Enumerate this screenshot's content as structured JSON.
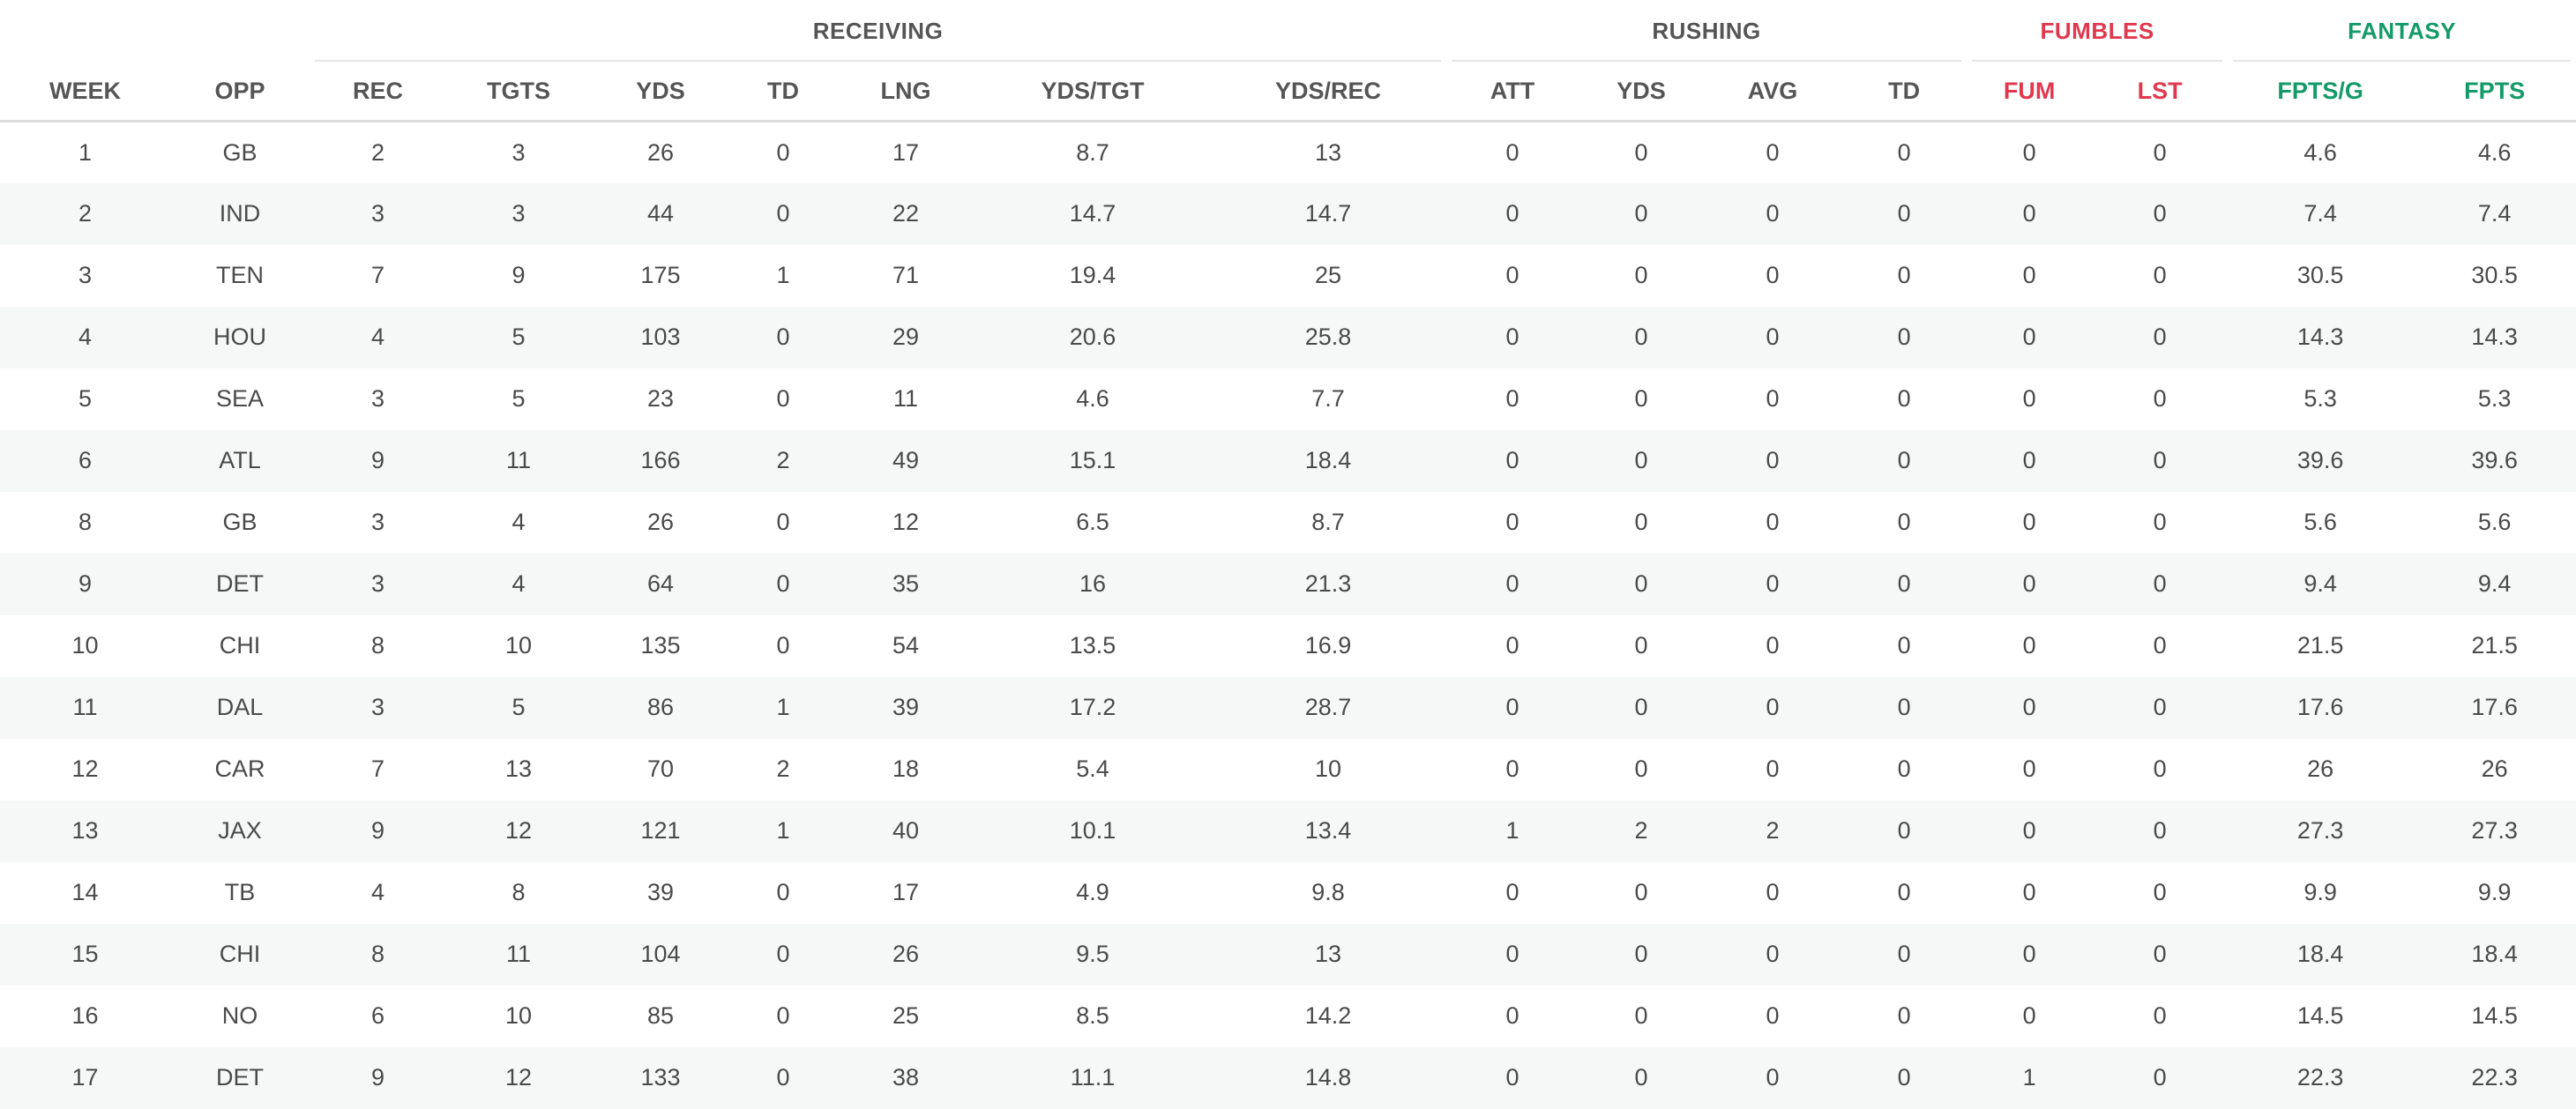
{
  "groups": {
    "receiving": "RECEIVING",
    "rushing": "RUSHING",
    "fumbles": "FUMBLES",
    "fantasy": "FANTASY"
  },
  "colors": {
    "fumbles": "#e0394f",
    "fantasy": "#149a69",
    "header_text": "#555555",
    "stripe": "#f6f8f7"
  },
  "columns": [
    "WEEK",
    "OPP",
    "REC",
    "TGTS",
    "YDS",
    "TD",
    "LNG",
    "YDS/TGT",
    "YDS/REC",
    "ATT",
    "YDS",
    "AVG",
    "TD",
    "FUM",
    "LST",
    "FPTS/G",
    "FPTS"
  ],
  "rows": [
    [
      "1",
      "GB",
      "2",
      "3",
      "26",
      "0",
      "17",
      "8.7",
      "13",
      "0",
      "0",
      "0",
      "0",
      "0",
      "0",
      "4.6",
      "4.6"
    ],
    [
      "2",
      "IND",
      "3",
      "3",
      "44",
      "0",
      "22",
      "14.7",
      "14.7",
      "0",
      "0",
      "0",
      "0",
      "0",
      "0",
      "7.4",
      "7.4"
    ],
    [
      "3",
      "TEN",
      "7",
      "9",
      "175",
      "1",
      "71",
      "19.4",
      "25",
      "0",
      "0",
      "0",
      "0",
      "0",
      "0",
      "30.5",
      "30.5"
    ],
    [
      "4",
      "HOU",
      "4",
      "5",
      "103",
      "0",
      "29",
      "20.6",
      "25.8",
      "0",
      "0",
      "0",
      "0",
      "0",
      "0",
      "14.3",
      "14.3"
    ],
    [
      "5",
      "SEA",
      "3",
      "5",
      "23",
      "0",
      "11",
      "4.6",
      "7.7",
      "0",
      "0",
      "0",
      "0",
      "0",
      "0",
      "5.3",
      "5.3"
    ],
    [
      "6",
      "ATL",
      "9",
      "11",
      "166",
      "2",
      "49",
      "15.1",
      "18.4",
      "0",
      "0",
      "0",
      "0",
      "0",
      "0",
      "39.6",
      "39.6"
    ],
    [
      "8",
      "GB",
      "3",
      "4",
      "26",
      "0",
      "12",
      "6.5",
      "8.7",
      "0",
      "0",
      "0",
      "0",
      "0",
      "0",
      "5.6",
      "5.6"
    ],
    [
      "9",
      "DET",
      "3",
      "4",
      "64",
      "0",
      "35",
      "16",
      "21.3",
      "0",
      "0",
      "0",
      "0",
      "0",
      "0",
      "9.4",
      "9.4"
    ],
    [
      "10",
      "CHI",
      "8",
      "10",
      "135",
      "0",
      "54",
      "13.5",
      "16.9",
      "0",
      "0",
      "0",
      "0",
      "0",
      "0",
      "21.5",
      "21.5"
    ],
    [
      "11",
      "DAL",
      "3",
      "5",
      "86",
      "1",
      "39",
      "17.2",
      "28.7",
      "0",
      "0",
      "0",
      "0",
      "0",
      "0",
      "17.6",
      "17.6"
    ],
    [
      "12",
      "CAR",
      "7",
      "13",
      "70",
      "2",
      "18",
      "5.4",
      "10",
      "0",
      "0",
      "0",
      "0",
      "0",
      "0",
      "26",
      "26"
    ],
    [
      "13",
      "JAX",
      "9",
      "12",
      "121",
      "1",
      "40",
      "10.1",
      "13.4",
      "1",
      "2",
      "2",
      "0",
      "0",
      "0",
      "27.3",
      "27.3"
    ],
    [
      "14",
      "TB",
      "4",
      "8",
      "39",
      "0",
      "17",
      "4.9",
      "9.8",
      "0",
      "0",
      "0",
      "0",
      "0",
      "0",
      "9.9",
      "9.9"
    ],
    [
      "15",
      "CHI",
      "8",
      "11",
      "104",
      "0",
      "26",
      "9.5",
      "13",
      "0",
      "0",
      "0",
      "0",
      "0",
      "0",
      "18.4",
      "18.4"
    ],
    [
      "16",
      "NO",
      "6",
      "10",
      "85",
      "0",
      "25",
      "8.5",
      "14.2",
      "0",
      "0",
      "0",
      "0",
      "0",
      "0",
      "14.5",
      "14.5"
    ],
    [
      "17",
      "DET",
      "9",
      "12",
      "133",
      "0",
      "38",
      "11.1",
      "14.8",
      "0",
      "0",
      "0",
      "0",
      "1",
      "0",
      "22.3",
      "22.3"
    ]
  ]
}
